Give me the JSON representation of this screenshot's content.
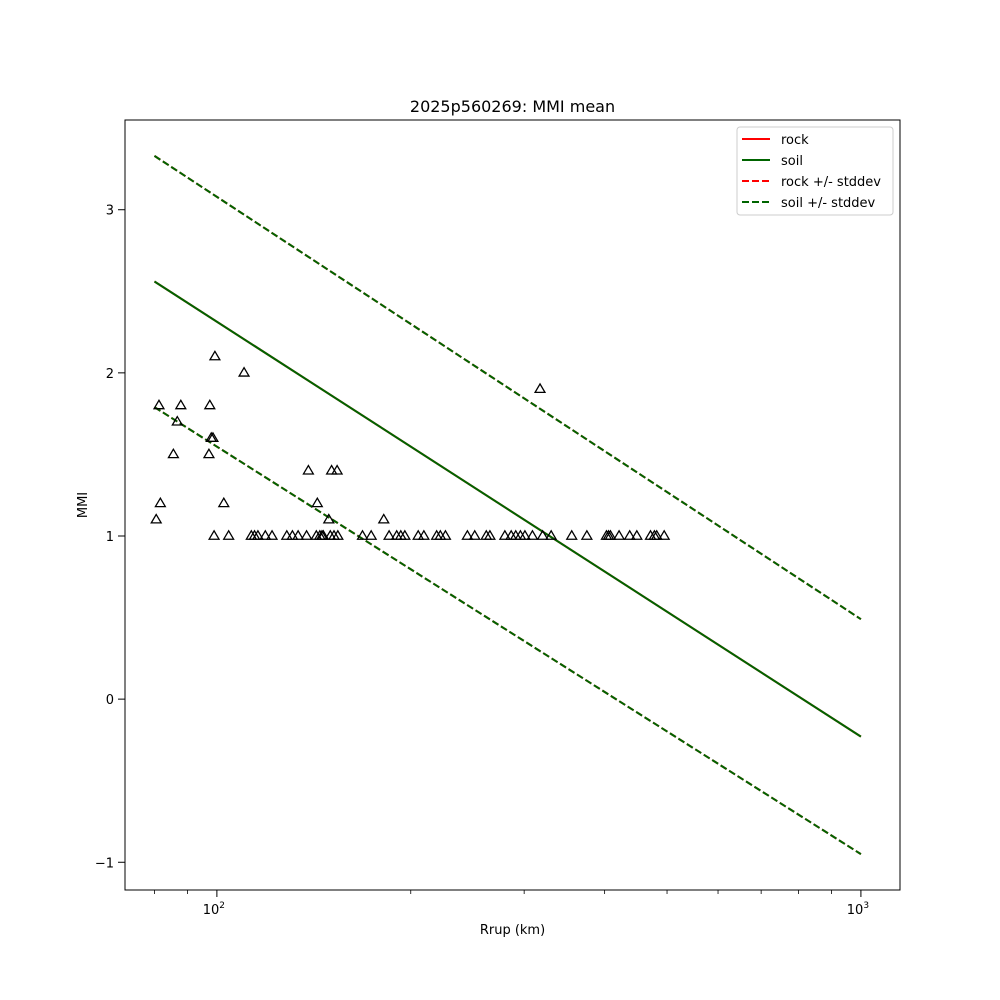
{
  "chart_data": {
    "type": "scatter",
    "title": "2025p560269: MMI mean",
    "xlabel": "Rrup (km)",
    "ylabel": "MMI",
    "xscale": "log",
    "xlim": [
      72,
      1150
    ],
    "ylim": [
      -1.17,
      3.55
    ],
    "xticks": [
      {
        "value": 100,
        "base": "10",
        "exp": "2"
      },
      {
        "value": 1000,
        "base": "10",
        "exp": "3"
      }
    ],
    "yticks": [
      {
        "value": -1,
        "label": "−1"
      },
      {
        "value": 0,
        "label": "0"
      },
      {
        "value": 1,
        "label": "1"
      },
      {
        "value": 2,
        "label": "2"
      },
      {
        "value": 3,
        "label": "3"
      }
    ],
    "legend": {
      "position": "upper right",
      "entries": [
        {
          "label": "rock",
          "color": "#ff0000",
          "style": "solid"
        },
        {
          "label": "soil",
          "color": "#006400",
          "style": "solid"
        },
        {
          "label": "rock +/- stddev",
          "color": "#ff0000",
          "style": "dashed"
        },
        {
          "label": "soil +/- stddev",
          "color": "#006400",
          "style": "dashed"
        }
      ]
    },
    "lines": [
      {
        "name": "rock",
        "color": "#ff0000",
        "style": "solid",
        "x": [
          80,
          1000
        ],
        "y": [
          2.56,
          -0.23
        ]
      },
      {
        "name": "soil",
        "color": "#006400",
        "style": "solid",
        "x": [
          80,
          1000
        ],
        "y": [
          2.56,
          -0.23
        ]
      },
      {
        "name": "rock +/- stddev",
        "color": "#ff0000",
        "style": "dashed",
        "x": [
          80,
          1000
        ],
        "y": [
          3.33,
          0.49
        ]
      },
      {
        "name": "rock +/- stddev",
        "color": "#ff0000",
        "style": "dashed",
        "x": [
          80,
          1000
        ],
        "y": [
          1.79,
          -0.95
        ]
      },
      {
        "name": "soil +/- stddev",
        "color": "#006400",
        "style": "dashed",
        "x": [
          80,
          1000
        ],
        "y": [
          3.33,
          0.49
        ]
      },
      {
        "name": "soil +/- stddev",
        "color": "#006400",
        "style": "dashed",
        "x": [
          80,
          1000
        ],
        "y": [
          1.79,
          -0.95
        ]
      }
    ],
    "points": {
      "marker": "triangle",
      "color": "#000000",
      "data": [
        [
          80.5,
          1.1
        ],
        [
          81.3,
          1.8
        ],
        [
          81.7,
          1.2
        ],
        [
          85.6,
          1.5
        ],
        [
          86.8,
          1.7
        ],
        [
          87.9,
          1.8
        ],
        [
          97.2,
          1.5
        ],
        [
          97.5,
          1.8
        ],
        [
          98.0,
          1.6
        ],
        [
          98.6,
          1.6
        ],
        [
          99.0,
          1.0
        ],
        [
          99.3,
          2.1
        ],
        [
          102.5,
          1.2
        ],
        [
          104.3,
          1.0
        ],
        [
          110.2,
          2.0
        ],
        [
          113.1,
          1.0
        ],
        [
          114.4,
          1.0
        ],
        [
          115.8,
          1.0
        ],
        [
          118.9,
          1.0
        ],
        [
          121.8,
          1.0
        ],
        [
          128.4,
          1.0
        ],
        [
          131.0,
          1.0
        ],
        [
          133.7,
          1.0
        ],
        [
          137.8,
          1.0
        ],
        [
          138.7,
          1.4
        ],
        [
          142.7,
          1.0
        ],
        [
          143.2,
          1.2
        ],
        [
          144.5,
          1.0
        ],
        [
          145.6,
          1.0
        ],
        [
          146.3,
          1.0
        ],
        [
          149.2,
          1.1
        ],
        [
          150.0,
          1.0
        ],
        [
          150.7,
          1.4
        ],
        [
          152.0,
          1.0
        ],
        [
          153.7,
          1.4
        ],
        [
          154.1,
          1.0
        ],
        [
          168.3,
          1.0
        ],
        [
          173.6,
          1.0
        ],
        [
          181.6,
          1.1
        ],
        [
          185.1,
          1.0
        ],
        [
          190.2,
          1.0
        ],
        [
          193.0,
          1.0
        ],
        [
          195.8,
          1.0
        ],
        [
          205.4,
          1.0
        ],
        [
          209.6,
          1.0
        ],
        [
          219.4,
          1.0
        ],
        [
          222.3,
          1.0
        ],
        [
          226.4,
          1.0
        ],
        [
          244.9,
          1.0
        ],
        [
          251.4,
          1.0
        ],
        [
          262.0,
          1.0
        ],
        [
          265.4,
          1.0
        ],
        [
          280.0,
          1.0
        ],
        [
          286.4,
          1.0
        ],
        [
          291.1,
          1.0
        ],
        [
          296.0,
          1.0
        ],
        [
          300.8,
          1.0
        ],
        [
          309.0,
          1.0
        ],
        [
          317.5,
          1.9
        ],
        [
          320.5,
          1.0
        ],
        [
          330.4,
          1.0
        ],
        [
          355.6,
          1.0
        ],
        [
          375.4,
          1.0
        ],
        [
          402.6,
          1.0
        ],
        [
          405.6,
          1.0
        ],
        [
          408.4,
          1.0
        ],
        [
          421.2,
          1.0
        ],
        [
          437.5,
          1.0
        ],
        [
          448.8,
          1.0
        ],
        [
          471.3,
          1.0
        ],
        [
          477.9,
          1.0
        ],
        [
          481.9,
          1.0
        ],
        [
          494.9,
          1.0
        ]
      ]
    }
  }
}
